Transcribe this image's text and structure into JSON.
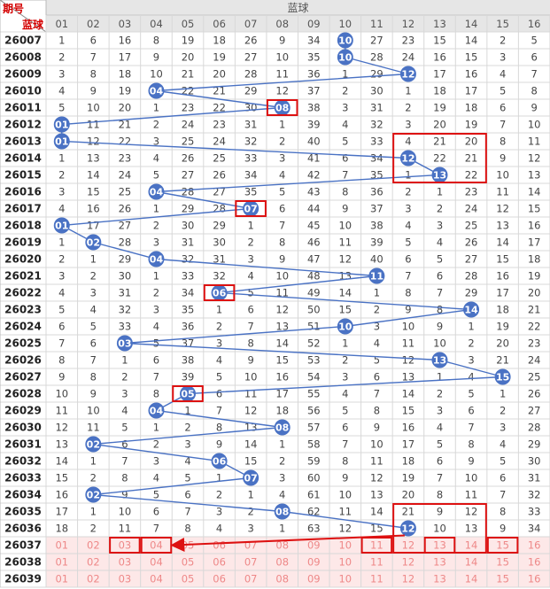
{
  "header": {
    "corner_top": "期号",
    "corner_bottom": "蓝球",
    "section_title": "蓝球",
    "columns": [
      "01",
      "02",
      "03",
      "04",
      "05",
      "06",
      "07",
      "08",
      "09",
      "10",
      "11",
      "12",
      "13",
      "14",
      "15",
      "16"
    ]
  },
  "colors": {
    "header_bg": "#e6e6e6",
    "corner_top_text": "#d40000",
    "corner_bottom_text": "#d40000",
    "cell_text": "#444444",
    "ball_fill": "#4a72c4",
    "ball_text": "#ffffff",
    "line": "#4a72c4",
    "highlight_box": "#dd1111",
    "predict_bg": "#fde8e8",
    "predict_text": "#ee8888",
    "grid_line": "#d8d8d8"
  },
  "chart_data": {
    "type": "table",
    "rows": [
      {
        "period": "26007",
        "cells": [
          1,
          6,
          16,
          8,
          19,
          18,
          26,
          9,
          34,
          10,
          27,
          23,
          15,
          14,
          2,
          5
        ],
        "ball": 10
      },
      {
        "period": "26008",
        "cells": [
          2,
          7,
          17,
          9,
          20,
          19,
          27,
          10,
          35,
          10,
          28,
          24,
          16,
          15,
          3,
          6
        ],
        "ball": 10
      },
      {
        "period": "26009",
        "cells": [
          3,
          8,
          18,
          10,
          21,
          20,
          28,
          11,
          36,
          1,
          29,
          12,
          17,
          16,
          4,
          7
        ],
        "ball": 12
      },
      {
        "period": "26010",
        "cells": [
          4,
          9,
          19,
          4,
          22,
          21,
          29,
          12,
          37,
          2,
          30,
          1,
          18,
          17,
          5,
          8
        ],
        "ball": 4
      },
      {
        "period": "26011",
        "cells": [
          5,
          10,
          20,
          1,
          23,
          22,
          30,
          8,
          38,
          3,
          31,
          2,
          19,
          18,
          6,
          9
        ],
        "ball": 8
      },
      {
        "period": "26012",
        "cells": [
          1,
          11,
          21,
          2,
          24,
          23,
          31,
          1,
          39,
          4,
          32,
          3,
          20,
          19,
          7,
          10
        ],
        "ball": 1
      },
      {
        "period": "26013",
        "cells": [
          1,
          12,
          22,
          3,
          25,
          24,
          32,
          2,
          40,
          5,
          33,
          4,
          21,
          20,
          8,
          11
        ],
        "ball": 1
      },
      {
        "period": "26014",
        "cells": [
          1,
          13,
          23,
          4,
          26,
          25,
          33,
          3,
          41,
          6,
          34,
          12,
          22,
          21,
          9,
          12
        ],
        "ball": 12
      },
      {
        "period": "26015",
        "cells": [
          2,
          14,
          24,
          5,
          27,
          26,
          34,
          4,
          42,
          7,
          35,
          1,
          13,
          22,
          10,
          13
        ],
        "ball": 13
      },
      {
        "period": "26016",
        "cells": [
          3,
          15,
          25,
          4,
          28,
          27,
          35,
          5,
          43,
          8,
          36,
          2,
          1,
          23,
          11,
          14
        ],
        "ball": 4
      },
      {
        "period": "26017",
        "cells": [
          4,
          16,
          26,
          1,
          29,
          28,
          7,
          6,
          44,
          9,
          37,
          3,
          2,
          24,
          12,
          15
        ],
        "ball": 7
      },
      {
        "period": "26018",
        "cells": [
          1,
          17,
          27,
          2,
          30,
          29,
          1,
          7,
          45,
          10,
          38,
          4,
          3,
          25,
          13,
          16
        ],
        "ball": 1
      },
      {
        "period": "26019",
        "cells": [
          1,
          2,
          28,
          3,
          31,
          30,
          2,
          8,
          46,
          11,
          39,
          5,
          4,
          26,
          14,
          17
        ],
        "ball": 2
      },
      {
        "period": "26020",
        "cells": [
          2,
          1,
          29,
          4,
          32,
          31,
          3,
          9,
          47,
          12,
          40,
          6,
          5,
          27,
          15,
          18
        ],
        "ball": 4
      },
      {
        "period": "26021",
        "cells": [
          3,
          2,
          30,
          1,
          33,
          32,
          4,
          10,
          48,
          13,
          11,
          7,
          6,
          28,
          16,
          19
        ],
        "ball": 11
      },
      {
        "period": "26022",
        "cells": [
          4,
          3,
          31,
          2,
          34,
          6,
          5,
          11,
          49,
          14,
          1,
          8,
          7,
          29,
          17,
          20
        ],
        "ball": 6
      },
      {
        "period": "26023",
        "cells": [
          5,
          4,
          32,
          3,
          35,
          1,
          6,
          12,
          50,
          15,
          2,
          9,
          8,
          14,
          18,
          21
        ],
        "ball": 14
      },
      {
        "period": "26024",
        "cells": [
          6,
          5,
          33,
          4,
          36,
          2,
          7,
          13,
          51,
          10,
          3,
          10,
          9,
          1,
          19,
          22
        ],
        "ball": 10
      },
      {
        "period": "26025",
        "cells": [
          7,
          6,
          3,
          5,
          37,
          3,
          8,
          14,
          52,
          1,
          4,
          11,
          10,
          2,
          20,
          23
        ],
        "ball": 3
      },
      {
        "period": "26026",
        "cells": [
          8,
          7,
          1,
          6,
          38,
          4,
          9,
          15,
          53,
          2,
          5,
          12,
          13,
          3,
          21,
          24
        ],
        "ball": 13
      },
      {
        "period": "26027",
        "cells": [
          9,
          8,
          2,
          7,
          39,
          5,
          10,
          16,
          54,
          3,
          6,
          13,
          1,
          4,
          15,
          25
        ],
        "ball": 15
      },
      {
        "period": "26028",
        "cells": [
          10,
          9,
          3,
          8,
          5,
          6,
          11,
          17,
          55,
          4,
          7,
          14,
          2,
          5,
          1,
          26
        ],
        "ball": 5
      },
      {
        "period": "26029",
        "cells": [
          11,
          10,
          4,
          4,
          1,
          7,
          12,
          18,
          56,
          5,
          8,
          15,
          3,
          6,
          2,
          27
        ],
        "ball": 4
      },
      {
        "period": "26030",
        "cells": [
          12,
          11,
          5,
          1,
          2,
          8,
          13,
          8,
          57,
          6,
          9,
          16,
          4,
          7,
          3,
          28
        ],
        "ball": 8
      },
      {
        "period": "26031",
        "cells": [
          13,
          2,
          6,
          2,
          3,
          9,
          14,
          1,
          58,
          7,
          10,
          17,
          5,
          8,
          4,
          29
        ],
        "ball": 2
      },
      {
        "period": "26032",
        "cells": [
          14,
          1,
          7,
          3,
          4,
          6,
          15,
          2,
          59,
          8,
          11,
          18,
          6,
          9,
          5,
          30
        ],
        "ball": 6
      },
      {
        "period": "26033",
        "cells": [
          15,
          2,
          8,
          4,
          5,
          1,
          7,
          3,
          60,
          9,
          12,
          19,
          7,
          10,
          6,
          31
        ],
        "ball": 7
      },
      {
        "period": "26034",
        "cells": [
          16,
          2,
          9,
          5,
          6,
          2,
          1,
          4,
          61,
          10,
          13,
          20,
          8,
          11,
          7,
          32
        ],
        "ball": 2
      },
      {
        "period": "26035",
        "cells": [
          17,
          1,
          10,
          6,
          7,
          3,
          2,
          8,
          62,
          11,
          14,
          21,
          9,
          12,
          8,
          33
        ],
        "ball": 8
      },
      {
        "period": "26036",
        "cells": [
          18,
          2,
          11,
          7,
          8,
          4,
          3,
          1,
          63,
          12,
          15,
          12,
          10,
          13,
          9,
          34
        ],
        "ball": 12
      }
    ],
    "predict_rows": [
      {
        "period": "26037",
        "cells": [
          "01",
          "02",
          "03",
          "04",
          "05",
          "06",
          "07",
          "08",
          "09",
          "10",
          "11",
          "12",
          "13",
          "14",
          "15",
          "16"
        ]
      },
      {
        "period": "26038",
        "cells": [
          "01",
          "02",
          "03",
          "04",
          "05",
          "06",
          "07",
          "08",
          "09",
          "10",
          "11",
          "12",
          "13",
          "14",
          "15",
          "16"
        ]
      },
      {
        "period": "26039",
        "cells": [
          "01",
          "02",
          "03",
          "04",
          "05",
          "06",
          "07",
          "08",
          "09",
          "10",
          "11",
          "12",
          "13",
          "14",
          "15",
          "16"
        ]
      }
    ],
    "annotations": {
      "boxes": [
        {
          "row": 4,
          "col": 8,
          "cols": 1,
          "rows": 1
        },
        {
          "row": 6,
          "col": 12,
          "cols": 3,
          "rows": 3
        },
        {
          "row": 10,
          "col": 7,
          "cols": 1,
          "rows": 1
        },
        {
          "row": 15,
          "col": 6,
          "cols": 1,
          "rows": 1
        },
        {
          "row": 21,
          "col": 5,
          "cols": 1,
          "rows": 1
        },
        {
          "row": 28,
          "col": 12,
          "cols": 3,
          "rows": 3
        },
        {
          "row": 30,
          "col": 3,
          "cols": 1,
          "rows": 1
        },
        {
          "row": 30,
          "col": 4,
          "cols": 1,
          "rows": 1
        },
        {
          "row": 30,
          "col": 11,
          "cols": 1,
          "rows": 1
        },
        {
          "row": 30,
          "col": 13,
          "cols": 1,
          "rows": 1
        },
        {
          "row": 30,
          "col": 15,
          "cols": 1,
          "rows": 1
        }
      ],
      "arrow": {
        "from_row": 29,
        "from_col": 12,
        "to_row": 30,
        "to_col": 4
      }
    }
  }
}
